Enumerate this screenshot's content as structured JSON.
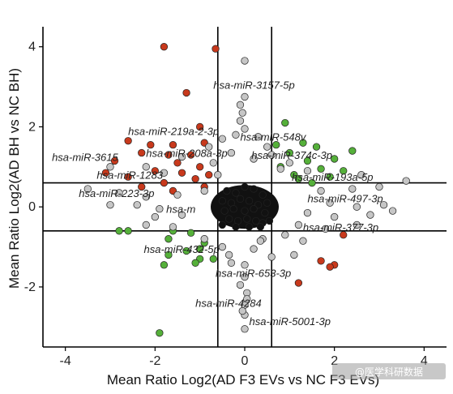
{
  "chart_data": {
    "type": "scatter",
    "title": "",
    "xlabel": "Mean Ratio Log2(AD F3 EVs vs NC F3 EVs)",
    "ylabel": "Mean Ratio Log2(AD BH vs NC BH)",
    "xlim": [
      -4.5,
      4.5
    ],
    "ylim": [
      -3.5,
      4.5
    ],
    "x_ticks": [
      -4,
      -2,
      0,
      2,
      4
    ],
    "y_ticks": [
      -2,
      0,
      2,
      4
    ],
    "x_tick_labels": [
      "-4",
      "-2",
      "0",
      "2",
      "4"
    ],
    "y_tick_labels": [
      "-2",
      "0",
      "2",
      "4"
    ],
    "grid": false,
    "legend": "none",
    "threshold_lines": {
      "vertical": [
        -0.6,
        0.6
      ],
      "horizontal": [
        0.6,
        -0.6
      ]
    },
    "colors": {
      "red": "#c8391c",
      "green": "#55b03a",
      "gray": "#c6c6c6",
      "black": "#111111"
    },
    "series": [
      {
        "color_key": "red",
        "points": [
          [
            -1.8,
            4.0
          ],
          [
            -0.65,
            3.95
          ],
          [
            -1.3,
            2.85
          ],
          [
            -1.0,
            2.0
          ],
          [
            -2.6,
            1.65
          ],
          [
            -2.1,
            1.55
          ],
          [
            -1.6,
            1.55
          ],
          [
            -0.9,
            1.6
          ],
          [
            -2.3,
            1.35
          ],
          [
            -1.7,
            1.3
          ],
          [
            -1.2,
            1.3
          ],
          [
            -2.9,
            1.15
          ],
          [
            -1.5,
            1.1
          ],
          [
            -1.0,
            1.0
          ],
          [
            -3.1,
            0.85
          ],
          [
            -2.0,
            0.9
          ],
          [
            -1.4,
            0.85
          ],
          [
            -0.8,
            0.8
          ],
          [
            -2.6,
            0.75
          ],
          [
            -1.8,
            0.6
          ],
          [
            -1.1,
            0.7
          ],
          [
            -2.3,
            0.5
          ],
          [
            -0.9,
            0.5
          ],
          [
            -1.6,
            0.4
          ],
          [
            2.2,
            -0.7
          ],
          [
            2.0,
            -1.45
          ],
          [
            1.9,
            -1.5
          ],
          [
            1.7,
            -1.35
          ],
          [
            1.2,
            -1.9
          ]
        ]
      },
      {
        "color_key": "green",
        "points": [
          [
            0.9,
            2.1
          ],
          [
            1.3,
            1.6
          ],
          [
            0.7,
            1.55
          ],
          [
            1.6,
            1.5
          ],
          [
            1.0,
            1.35
          ],
          [
            2.4,
            1.4
          ],
          [
            2.0,
            1.2
          ],
          [
            1.4,
            1.15
          ],
          [
            0.8,
            1.0
          ],
          [
            1.7,
            0.95
          ],
          [
            2.2,
            0.9
          ],
          [
            1.1,
            0.8
          ],
          [
            1.9,
            0.75
          ],
          [
            1.5,
            0.6
          ],
          [
            1.2,
            0.7
          ],
          [
            -2.6,
            -0.6
          ],
          [
            -2.8,
            -0.6
          ],
          [
            -1.6,
            -0.6
          ],
          [
            -1.2,
            -0.65
          ],
          [
            -1.7,
            -0.8
          ],
          [
            -0.9,
            -0.9
          ],
          [
            -1.0,
            -1.05
          ],
          [
            -1.3,
            -1.1
          ],
          [
            -1.0,
            -1.3
          ],
          [
            -0.7,
            -1.3
          ],
          [
            -1.7,
            -1.2
          ],
          [
            -1.8,
            -1.45
          ],
          [
            -1.1,
            -1.4
          ],
          [
            -1.9,
            -3.15
          ]
        ]
      },
      {
        "color_key": "gray",
        "points": [
          [
            0.0,
            3.65
          ],
          [
            0.0,
            2.75
          ],
          [
            -0.1,
            2.55
          ],
          [
            -0.05,
            2.35
          ],
          [
            -0.1,
            2.15
          ],
          [
            0.0,
            1.95
          ],
          [
            -0.2,
            1.8
          ],
          [
            -0.5,
            1.7
          ],
          [
            0.3,
            1.75
          ],
          [
            -0.8,
            1.5
          ],
          [
            0.5,
            1.5
          ],
          [
            -0.3,
            1.35
          ],
          [
            0.6,
            1.3
          ],
          [
            -1.4,
            1.25
          ],
          [
            0.2,
            1.2
          ],
          [
            -0.7,
            1.1
          ],
          [
            1.0,
            1.1
          ],
          [
            -3.0,
            1.0
          ],
          [
            -2.2,
            1.0
          ],
          [
            0.8,
            0.95
          ],
          [
            1.4,
            0.9
          ],
          [
            -1.8,
            0.85
          ],
          [
            -0.6,
            0.8
          ],
          [
            2.6,
            0.8
          ],
          [
            -3.5,
            0.45
          ],
          [
            -2.8,
            0.35
          ],
          [
            -2.2,
            0.25
          ],
          [
            -1.5,
            0.3
          ],
          [
            -0.9,
            0.4
          ],
          [
            1.7,
            0.4
          ],
          [
            2.4,
            0.45
          ],
          [
            3.0,
            0.5
          ],
          [
            -3.0,
            0.05
          ],
          [
            -2.4,
            0.05
          ],
          [
            -1.9,
            -0.05
          ],
          [
            1.9,
            0.1
          ],
          [
            2.5,
            0.0
          ],
          [
            3.1,
            0.05
          ],
          [
            3.6,
            0.65
          ],
          [
            -2.0,
            -0.25
          ],
          [
            -1.4,
            -0.2
          ],
          [
            1.4,
            -0.15
          ],
          [
            2.0,
            -0.25
          ],
          [
            2.8,
            -0.2
          ],
          [
            3.3,
            -0.1
          ],
          [
            -2.2,
            -0.45
          ],
          [
            -1.6,
            -0.5
          ],
          [
            1.2,
            -0.45
          ],
          [
            1.8,
            -0.55
          ],
          [
            2.5,
            -0.45
          ],
          [
            -0.9,
            -0.8
          ],
          [
            0.4,
            -0.8
          ],
          [
            0.9,
            -0.7
          ],
          [
            -0.5,
            -1.0
          ],
          [
            0.2,
            -1.05
          ],
          [
            0.6,
            -1.25
          ],
          [
            1.1,
            -1.2
          ],
          [
            -0.3,
            -1.4
          ],
          [
            0.0,
            -1.45
          ],
          [
            0.0,
            -1.75
          ],
          [
            -0.1,
            -1.95
          ],
          [
            0.05,
            -2.15
          ],
          [
            0.0,
            -2.45
          ],
          [
            0.0,
            -2.7
          ],
          [
            0.0,
            -3.05
          ],
          [
            0.05,
            -2.3
          ],
          [
            -0.05,
            -2.6
          ],
          [
            0.35,
            -0.85
          ],
          [
            -0.35,
            -1.2
          ],
          [
            1.3,
            -0.85
          ]
        ]
      },
      {
        "color_key": "black",
        "points": [
          [
            -0.4,
            0.4
          ],
          [
            -0.2,
            0.35
          ],
          [
            0.0,
            0.5
          ],
          [
            0.2,
            0.45
          ],
          [
            0.4,
            0.3
          ],
          [
            -0.5,
            0.15
          ],
          [
            -0.3,
            0.1
          ],
          [
            -0.1,
            0.2
          ],
          [
            0.1,
            0.15
          ],
          [
            0.3,
            0.05
          ],
          [
            0.5,
            0.1
          ],
          [
            -0.45,
            -0.1
          ],
          [
            -0.25,
            -0.05
          ],
          [
            0.0,
            -0.1
          ],
          [
            0.2,
            -0.05
          ],
          [
            0.45,
            -0.15
          ],
          [
            -0.35,
            -0.3
          ],
          [
            -0.15,
            -0.35
          ],
          [
            0.05,
            -0.3
          ],
          [
            0.25,
            -0.35
          ],
          [
            0.4,
            -0.4
          ],
          [
            -0.5,
            -0.45
          ],
          [
            -0.2,
            -0.5
          ],
          [
            0.1,
            -0.5
          ],
          [
            0.35,
            -0.5
          ],
          [
            0.55,
            -0.35
          ]
        ]
      }
    ],
    "annotations": [
      {
        "text": "hsa-miR-3157-5p",
        "x": -0.7,
        "y": 2.95
      },
      {
        "text": "hsa-miR-219a-2-3p",
        "x": -2.6,
        "y": 1.8
      },
      {
        "text": "hsa-miR-548v",
        "x": -0.1,
        "y": 1.65
      },
      {
        "text": "hsa-miR-3615",
        "x": -4.3,
        "y": 1.15
      },
      {
        "text": "hsa-miR-208a-3p",
        "x": -2.2,
        "y": 1.25
      },
      {
        "text": "hsa-miR-374c-3p",
        "x": 0.15,
        "y": 1.2
      },
      {
        "text": "hsa-miR-1283",
        "x": -3.3,
        "y": 0.7
      },
      {
        "text": "hsa-miR-193a-5p",
        "x": 1.05,
        "y": 0.65
      },
      {
        "text": "hsa-miR-223-3p",
        "x": -3.7,
        "y": 0.25
      },
      {
        "text": "hsa-miR-497-3p",
        "x": 1.4,
        "y": 0.12
      },
      {
        "text": "hsa-m",
        "x": -1.75,
        "y": -0.15
      },
      {
        "text": "hsa-miR-377-3p",
        "x": 1.3,
        "y": -0.6
      },
      {
        "text": "hsa-miR-432-5p",
        "x": -2.25,
        "y": -1.15
      },
      {
        "text": "hsa-miR-653-3p",
        "x": -0.65,
        "y": -1.75
      },
      {
        "text": "hsa-miR-4284",
        "x": -1.1,
        "y": -2.5
      },
      {
        "text": "hsa-miR-5001-3p",
        "x": 0.1,
        "y": -2.95
      }
    ]
  },
  "watermark": "@医学科研数据"
}
